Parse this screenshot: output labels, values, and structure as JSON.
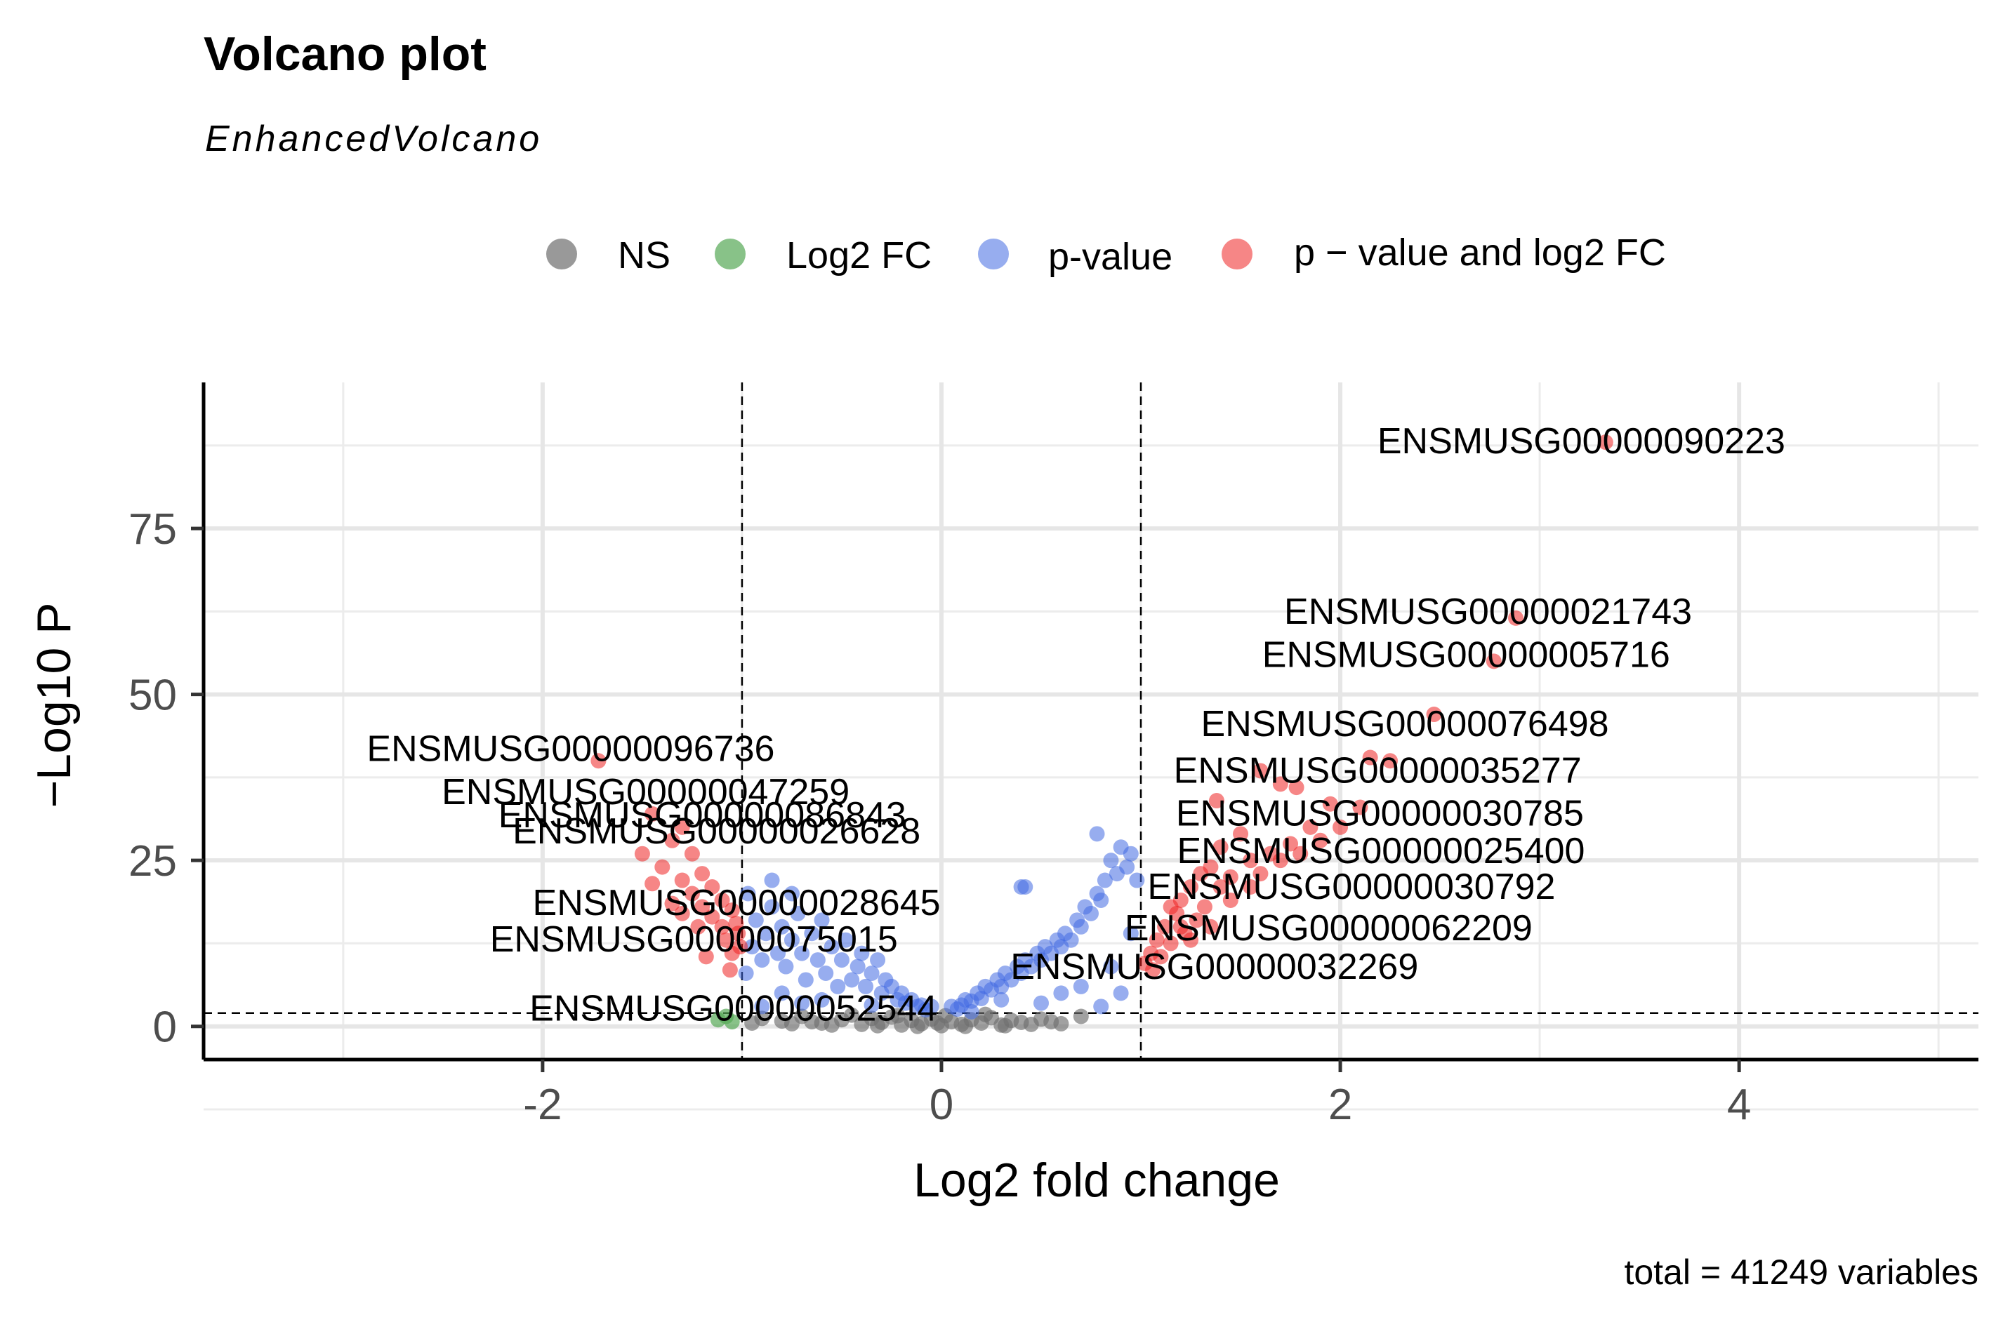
{
  "chart_data": {
    "type": "scatter",
    "title": "Volcano plot",
    "subtitle": "EnhancedVolcano",
    "xlabel": "Log2 fold change",
    "ylabel": "−Log10 P",
    "caption": "total = 41249 variables",
    "xlim": [
      -3.7,
      5.2
    ],
    "ylim": [
      -5,
      97
    ],
    "x_ticks": [
      -2,
      0,
      2,
      4
    ],
    "y_ticks": [
      0,
      25,
      50,
      75
    ],
    "grid": true,
    "legend_position": "top",
    "fc_cutoff": 1,
    "p_cutoff_log10": 2,
    "legend": [
      {
        "key": "NS",
        "label": "NS",
        "color": "#6e6e6e"
      },
      {
        "key": "FC",
        "label": "Log2 FC",
        "color": "#55a855"
      },
      {
        "key": "P",
        "label": "p-value",
        "color": "#4169e1"
      },
      {
        "key": "FCP",
        "label": "p − value and log2 FC",
        "color": "#ee2222"
      }
    ],
    "labeled_points": [
      {
        "gene": "ENSMUSG00000090223",
        "x": 3.33,
        "y": 88
      },
      {
        "gene": "ENSMUSG00000021743",
        "x": 2.88,
        "y": 61.5
      },
      {
        "gene": "ENSMUSG00000005716",
        "x": 2.77,
        "y": 55
      },
      {
        "gene": "ENSMUSG00000076498",
        "x": 2.47,
        "y": 47
      },
      {
        "gene": "ENSMUSG00000035277",
        "x": 2.15,
        "y": 40.5
      },
      {
        "gene": "ENSMUSG00000030785",
        "x": 1.95,
        "y": 33
      },
      {
        "gene": "ENSMUSG00000025400",
        "x": 1.85,
        "y": 28
      },
      {
        "gene": "ENSMUSG00000030792",
        "x": 1.35,
        "y": 23
      },
      {
        "gene": "ENSMUSG00000062209",
        "x": 1.2,
        "y": 17
      },
      {
        "gene": "ENSMUSG00000032269",
        "x": 1.05,
        "y": 12
      },
      {
        "gene": "ENSMUSG00000096736",
        "x": -1.72,
        "y": 40
      },
      {
        "gene": "ENSMUSG00000047259",
        "x": -1.45,
        "y": 32
      },
      {
        "gene": "ENSMUSG00000086843",
        "x": -1.3,
        "y": 28.5
      },
      {
        "gene": "ENSMUSG00000026628",
        "x": -1.2,
        "y": 25
      },
      {
        "gene": "ENSMUSG00000028645",
        "x": -1.1,
        "y": 19
      },
      {
        "gene": "ENSMUSG00000075015",
        "x": -1.05,
        "y": 14
      },
      {
        "gene": "ENSMUSG00000052544",
        "x": -1.08,
        "y": 1.5
      }
    ],
    "series": [
      {
        "key": "NS",
        "name": "NS",
        "color": "#6e6e6e",
        "points": [
          [
            -0.9,
            1.2
          ],
          [
            -0.8,
            0.8
          ],
          [
            -0.7,
            1.5
          ],
          [
            -0.6,
            0.5
          ],
          [
            -0.5,
            1.0
          ],
          [
            -0.45,
            1.7
          ],
          [
            -0.4,
            0.3
          ],
          [
            -0.35,
            1.2
          ],
          [
            -0.3,
            0.6
          ],
          [
            -0.25,
            1.4
          ],
          [
            -0.2,
            0.2
          ],
          [
            -0.15,
            0.9
          ],
          [
            -0.1,
            0.4
          ],
          [
            -0.05,
            1.1
          ],
          [
            0,
            0.1
          ],
          [
            0.05,
            0.7
          ],
          [
            0.1,
            0.3
          ],
          [
            0.15,
            1.0
          ],
          [
            0.2,
            0.5
          ],
          [
            0.25,
            1.3
          ],
          [
            0.3,
            0.2
          ],
          [
            0.35,
            0.9
          ],
          [
            0.4,
            0.6
          ],
          [
            0.5,
            1.1
          ],
          [
            0.6,
            0.4
          ],
          [
            0.7,
            1.5
          ],
          [
            -0.55,
            0.2
          ],
          [
            0.45,
            0.3
          ],
          [
            -0.65,
            0.7
          ],
          [
            0.12,
            0.0
          ],
          [
            -0.12,
            0.0
          ],
          [
            -0.32,
            0.1
          ],
          [
            0.32,
            0.1
          ],
          [
            -0.75,
            0.4
          ],
          [
            0.55,
            0.7
          ],
          [
            -0.95,
            0.5
          ],
          [
            0.02,
            1.6
          ],
          [
            -0.02,
            0.5
          ],
          [
            0.22,
            1.8
          ],
          [
            -0.22,
            1.6
          ]
        ]
      },
      {
        "key": "FC",
        "name": "Log2 FC",
        "color": "#55a855",
        "points": [
          [
            -1.08,
            1.5
          ],
          [
            -1.12,
            1.0
          ],
          [
            -1.05,
            0.7
          ]
        ]
      },
      {
        "key": "P",
        "name": "p-value",
        "color": "#4169e1",
        "points": [
          [
            -0.98,
            8
          ],
          [
            -0.95,
            12
          ],
          [
            -0.93,
            16
          ],
          [
            -0.9,
            10
          ],
          [
            -0.88,
            14
          ],
          [
            -0.85,
            18
          ],
          [
            -0.82,
            11
          ],
          [
            -0.8,
            15
          ],
          [
            -0.78,
            9
          ],
          [
            -0.75,
            13
          ],
          [
            -0.72,
            17
          ],
          [
            -0.7,
            11
          ],
          [
            -0.68,
            7
          ],
          [
            -0.65,
            14
          ],
          [
            -0.62,
            10
          ],
          [
            -0.6,
            16
          ],
          [
            -0.58,
            8
          ],
          [
            -0.55,
            12
          ],
          [
            -0.52,
            6
          ],
          [
            -0.5,
            10
          ],
          [
            -0.48,
            13
          ],
          [
            -0.45,
            7
          ],
          [
            -0.42,
            9
          ],
          [
            -0.4,
            11
          ],
          [
            -0.38,
            6
          ],
          [
            -0.35,
            8
          ],
          [
            -0.32,
            10
          ],
          [
            -0.3,
            5
          ],
          [
            -0.28,
            7
          ],
          [
            -0.25,
            6
          ],
          [
            -0.22,
            4
          ],
          [
            -0.2,
            5
          ],
          [
            -0.18,
            3.5
          ],
          [
            -0.15,
            4
          ],
          [
            -0.12,
            3
          ],
          [
            -0.1,
            3.2
          ],
          [
            -0.08,
            2.5
          ],
          [
            -0.05,
            3
          ],
          [
            0.05,
            3
          ],
          [
            0.08,
            2.6
          ],
          [
            0.1,
            3.2
          ],
          [
            0.12,
            4
          ],
          [
            0.15,
            3.8
          ],
          [
            0.18,
            5
          ],
          [
            0.2,
            4.2
          ],
          [
            0.22,
            6
          ],
          [
            0.25,
            5.5
          ],
          [
            0.28,
            7
          ],
          [
            0.3,
            6
          ],
          [
            0.32,
            8
          ],
          [
            0.35,
            7
          ],
          [
            0.38,
            9
          ],
          [
            0.4,
            8
          ],
          [
            0.42,
            10
          ],
          [
            0.45,
            9
          ],
          [
            0.48,
            11
          ],
          [
            0.5,
            10
          ],
          [
            0.52,
            12
          ],
          [
            0.55,
            11
          ],
          [
            0.58,
            13
          ],
          [
            0.6,
            12
          ],
          [
            0.62,
            14
          ],
          [
            0.65,
            13
          ],
          [
            0.68,
            16
          ],
          [
            0.7,
            15
          ],
          [
            0.72,
            18
          ],
          [
            0.75,
            17
          ],
          [
            0.78,
            20
          ],
          [
            0.8,
            19
          ],
          [
            0.82,
            22
          ],
          [
            0.85,
            25
          ],
          [
            0.88,
            23
          ],
          [
            0.9,
            27
          ],
          [
            0.93,
            24
          ],
          [
            0.95,
            26
          ],
          [
            0.98,
            22
          ],
          [
            0.78,
            29
          ],
          [
            0.4,
            21
          ],
          [
            0.42,
            21
          ],
          [
            -0.97,
            20
          ],
          [
            0.3,
            4
          ],
          [
            0.6,
            5
          ],
          [
            0.7,
            6
          ],
          [
            0.8,
            3
          ],
          [
            0.9,
            5
          ],
          [
            0.5,
            3.5
          ],
          [
            -0.6,
            4
          ],
          [
            -0.8,
            5
          ],
          [
            -0.9,
            3
          ],
          [
            -0.7,
            3.5
          ],
          [
            0.15,
            2.2
          ],
          [
            -0.35,
            3.2
          ],
          [
            0.85,
            9
          ],
          [
            0.95,
            14
          ],
          [
            -0.85,
            22
          ],
          [
            -0.75,
            20
          ]
        ]
      },
      {
        "key": "FCP",
        "name": "p − value and log2 FC",
        "color": "#ee2222",
        "points": [
          [
            3.33,
            88
          ],
          [
            2.88,
            61.5
          ],
          [
            2.77,
            55
          ],
          [
            2.47,
            47
          ],
          [
            2.15,
            40.5
          ],
          [
            2.25,
            40
          ],
          [
            1.6,
            38.5
          ],
          [
            1.7,
            36.5
          ],
          [
            1.78,
            36
          ],
          [
            1.38,
            34
          ],
          [
            1.95,
            33.5
          ],
          [
            2.1,
            33
          ],
          [
            1.85,
            30
          ],
          [
            1.9,
            28
          ],
          [
            1.75,
            27.5
          ],
          [
            1.5,
            29
          ],
          [
            1.4,
            27
          ],
          [
            1.65,
            26
          ],
          [
            1.55,
            25
          ],
          [
            1.35,
            24
          ],
          [
            1.45,
            22.5
          ],
          [
            1.3,
            23
          ],
          [
            1.25,
            21
          ],
          [
            1.4,
            21
          ],
          [
            1.2,
            19
          ],
          [
            1.32,
            18
          ],
          [
            1.18,
            17
          ],
          [
            1.28,
            16
          ],
          [
            1.12,
            15
          ],
          [
            1.22,
            14
          ],
          [
            1.08,
            13
          ],
          [
            1.15,
            12.5
          ],
          [
            1.05,
            11
          ],
          [
            1.1,
            10.5
          ],
          [
            1.02,
            9.5
          ],
          [
            1.06,
            8.5
          ],
          [
            1.25,
            13
          ],
          [
            1.35,
            15
          ],
          [
            1.45,
            19
          ],
          [
            1.55,
            21
          ],
          [
            1.6,
            23
          ],
          [
            1.7,
            25
          ],
          [
            1.8,
            26
          ],
          [
            2.0,
            30
          ],
          [
            1.15,
            18
          ],
          [
            1.2,
            15
          ],
          [
            -1.72,
            40
          ],
          [
            -1.45,
            32
          ],
          [
            -1.3,
            30
          ],
          [
            -1.35,
            28
          ],
          [
            -1.25,
            26
          ],
          [
            -1.4,
            24
          ],
          [
            -1.2,
            23
          ],
          [
            -1.3,
            22
          ],
          [
            -1.15,
            21
          ],
          [
            -1.25,
            20
          ],
          [
            -1.1,
            19
          ],
          [
            -1.2,
            18
          ],
          [
            -1.05,
            17.5
          ],
          [
            -1.15,
            16.5
          ],
          [
            -1.03,
            15.5
          ],
          [
            -1.1,
            15
          ],
          [
            -1.02,
            14
          ],
          [
            -1.08,
            13
          ],
          [
            -1.01,
            12
          ],
          [
            -1.05,
            11
          ],
          [
            -1.06,
            8.5
          ],
          [
            -1.18,
            10.5
          ],
          [
            -1.3,
            17
          ],
          [
            -1.45,
            21.5
          ],
          [
            -1.35,
            18.5
          ],
          [
            -1.5,
            26
          ],
          [
            -1.22,
            15
          ]
        ]
      }
    ]
  }
}
